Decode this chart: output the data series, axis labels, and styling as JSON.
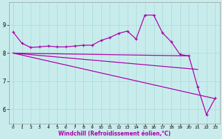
{
  "bg_color": "#c8ecec",
  "grid_color": "#b0dede",
  "line_color": "#aa00aa",
  "xlabel": "Windchill (Refroidissement éolien,°C)",
  "xlim": [
    -0.5,
    23.5
  ],
  "ylim": [
    5.5,
    9.8
  ],
  "yticks": [
    6,
    7,
    8,
    9
  ],
  "xticks": [
    0,
    1,
    2,
    3,
    4,
    5,
    6,
    7,
    8,
    9,
    10,
    11,
    12,
    13,
    14,
    15,
    16,
    17,
    18,
    19,
    20,
    21,
    22,
    23
  ],
  "line1_x": [
    0,
    1,
    2,
    3,
    4,
    5,
    6,
    7,
    8,
    9,
    10,
    11,
    12,
    13,
    14,
    15,
    16,
    17,
    18,
    19,
    20,
    21,
    22,
    23
  ],
  "line1_y": [
    8.75,
    8.35,
    8.2,
    8.22,
    8.25,
    8.22,
    8.22,
    8.25,
    8.28,
    8.28,
    8.45,
    8.55,
    8.7,
    8.78,
    8.5,
    9.35,
    9.35,
    8.72,
    8.4,
    7.95,
    7.9,
    6.8,
    5.82,
    6.4
  ],
  "line2_x": [
    0,
    20
  ],
  "line2_y": [
    8.0,
    7.9
  ],
  "line3_x": [
    0,
    23
  ],
  "line3_y": [
    8.0,
    6.38
  ],
  "line4_x": [
    0,
    21
  ],
  "line4_y": [
    8.0,
    7.42
  ]
}
